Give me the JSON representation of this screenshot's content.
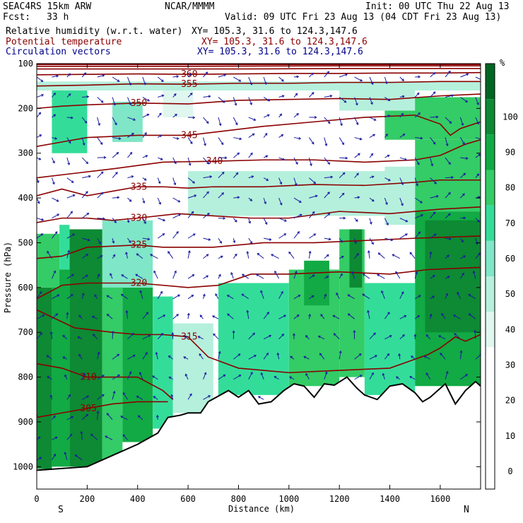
{
  "header": {
    "model": "SEAC4RS 15km ARW",
    "org": "NCAR/MMMM",
    "init": "Init: 00 UTC Thu 22 Aug 13",
    "fcst_label": "Fcst:",
    "fcst_value": "33 h",
    "valid": "Valid: 09 UTC Fri 23 Aug 13 (04 CDT Fri 23 Aug 13)",
    "fields": [
      {
        "name": "Relative humidity (w.r.t. water)",
        "xy": "XY= 105.3, 31.6 to 124.3,147.6",
        "color": "#000000"
      },
      {
        "name": "Potential temperature",
        "xy": "XY= 105.3, 31.6 to 124.3,147.6",
        "color": "#8b0000"
      },
      {
        "name": "Circulation vectors",
        "xy": "XY= 105.3, 31.6 to 124.3,147.6",
        "color": "#00008b"
      }
    ]
  },
  "colors": {
    "theta": "#8b0000",
    "vectors": "#1a1aa0",
    "terrain": "#000000",
    "rh_scale": [
      "#ffffff",
      "#ffffff",
      "#ffffff",
      "#ffffff",
      "#dff7ef",
      "#b5f0dc",
      "#7fe6c7",
      "#33dd99",
      "#33cc66",
      "#11aa44",
      "#0d8a33",
      "#006622"
    ]
  },
  "chart_data": {
    "type": "cross-section",
    "xlabel": "Distance (km)",
    "ylabel": "Pressure (hPa)",
    "xlim": [
      0,
      1760
    ],
    "ylim": [
      1050,
      100
    ],
    "x_ticks": [
      0,
      200,
      400,
      600,
      800,
      1000,
      1200,
      1400,
      1600
    ],
    "y_ticks": [
      100,
      200,
      300,
      400,
      500,
      600,
      700,
      800,
      900,
      1000
    ],
    "endpoints": {
      "left": "S",
      "right": "N"
    },
    "colorbar": {
      "unit": "%",
      "levels": [
        0,
        10,
        20,
        30,
        40,
        50,
        60,
        70,
        80,
        90,
        100
      ],
      "labels": [
        "0",
        "10",
        "20",
        "30",
        "40",
        "50",
        "60",
        "70",
        "80",
        "90",
        "100"
      ]
    },
    "terrain_surface": [
      {
        "x": 0,
        "p": 1008
      },
      {
        "x": 200,
        "p": 1000
      },
      {
        "x": 300,
        "p": 975
      },
      {
        "x": 400,
        "p": 950
      },
      {
        "x": 480,
        "p": 925
      },
      {
        "x": 520,
        "p": 890
      },
      {
        "x": 570,
        "p": 885
      },
      {
        "x": 600,
        "p": 880
      },
      {
        "x": 650,
        "p": 880
      },
      {
        "x": 680,
        "p": 855
      },
      {
        "x": 760,
        "p": 830
      },
      {
        "x": 800,
        "p": 845
      },
      {
        "x": 840,
        "p": 830
      },
      {
        "x": 880,
        "p": 860
      },
      {
        "x": 930,
        "p": 855
      },
      {
        "x": 980,
        "p": 830
      },
      {
        "x": 1020,
        "p": 815
      },
      {
        "x": 1060,
        "p": 820
      },
      {
        "x": 1100,
        "p": 845
      },
      {
        "x": 1140,
        "p": 815
      },
      {
        "x": 1180,
        "p": 818
      },
      {
        "x": 1230,
        "p": 800
      },
      {
        "x": 1270,
        "p": 825
      },
      {
        "x": 1300,
        "p": 840
      },
      {
        "x": 1350,
        "p": 850
      },
      {
        "x": 1400,
        "p": 820
      },
      {
        "x": 1450,
        "p": 815
      },
      {
        "x": 1500,
        "p": 835
      },
      {
        "x": 1530,
        "p": 855
      },
      {
        "x": 1560,
        "p": 845
      },
      {
        "x": 1620,
        "p": 815
      },
      {
        "x": 1660,
        "p": 860
      },
      {
        "x": 1700,
        "p": 830
      },
      {
        "x": 1740,
        "p": 810
      },
      {
        "x": 1760,
        "p": 820
      }
    ],
    "theta_contours": [
      {
        "level": 305,
        "label": "305",
        "points": [
          [
            0,
            890
          ],
          [
            100,
            880
          ],
          [
            200,
            870
          ],
          [
            300,
            860
          ],
          [
            400,
            855
          ],
          [
            520,
            855
          ]
        ]
      },
      {
        "level": 310,
        "label": "310",
        "points": [
          [
            0,
            770
          ],
          [
            100,
            780
          ],
          [
            200,
            800
          ],
          [
            300,
            800
          ],
          [
            400,
            800
          ],
          [
            500,
            830
          ],
          [
            540,
            850
          ]
        ]
      },
      {
        "level": 315,
        "label": "315",
        "points": [
          [
            0,
            650
          ],
          [
            150,
            690
          ],
          [
            300,
            700
          ],
          [
            400,
            705
          ],
          [
            500,
            705
          ],
          [
            600,
            710
          ],
          [
            680,
            755
          ],
          [
            800,
            780
          ],
          [
            1000,
            790
          ],
          [
            1200,
            785
          ],
          [
            1400,
            780
          ],
          [
            1550,
            750
          ],
          [
            1600,
            735
          ],
          [
            1660,
            710
          ],
          [
            1700,
            720
          ],
          [
            1760,
            705
          ]
        ]
      },
      {
        "level": 320,
        "label": "320",
        "points": [
          [
            0,
            625
          ],
          [
            100,
            595
          ],
          [
            200,
            590
          ],
          [
            300,
            590
          ],
          [
            400,
            590
          ],
          [
            600,
            600
          ],
          [
            720,
            595
          ],
          [
            850,
            570
          ],
          [
            1000,
            570
          ],
          [
            1200,
            565
          ],
          [
            1400,
            570
          ],
          [
            1550,
            560
          ],
          [
            1760,
            555
          ]
        ]
      },
      {
        "level": 325,
        "label": "325",
        "points": [
          [
            0,
            535
          ],
          [
            100,
            530
          ],
          [
            200,
            510
          ],
          [
            400,
            505
          ],
          [
            500,
            510
          ],
          [
            700,
            510
          ],
          [
            900,
            500
          ],
          [
            1100,
            500
          ],
          [
            1300,
            495
          ],
          [
            1500,
            490
          ],
          [
            1760,
            485
          ]
        ]
      },
      {
        "level": 330,
        "label": "330",
        "points": [
          [
            0,
            455
          ],
          [
            100,
            445
          ],
          [
            200,
            445
          ],
          [
            300,
            450
          ],
          [
            400,
            445
          ],
          [
            560,
            435
          ],
          [
            700,
            440
          ],
          [
            850,
            445
          ],
          [
            1000,
            445
          ],
          [
            1200,
            430
          ],
          [
            1400,
            435
          ],
          [
            1600,
            425
          ],
          [
            1760,
            420
          ]
        ]
      },
      {
        "level": 335,
        "label": "335",
        "points": [
          [
            0,
            395
          ],
          [
            100,
            380
          ],
          [
            200,
            395
          ],
          [
            300,
            385
          ],
          [
            400,
            375
          ],
          [
            500,
            375
          ],
          [
            600,
            378
          ],
          [
            700,
            375
          ],
          [
            900,
            375
          ],
          [
            1100,
            370
          ],
          [
            1300,
            372
          ],
          [
            1500,
            365
          ],
          [
            1600,
            360
          ],
          [
            1760,
            360
          ]
        ]
      },
      {
        "level": 340,
        "label": "340",
        "points": [
          [
            0,
            355
          ],
          [
            150,
            345
          ],
          [
            300,
            335
          ],
          [
            500,
            320
          ],
          [
            700,
            318
          ],
          [
            900,
            315
          ],
          [
            1100,
            315
          ],
          [
            1300,
            320
          ],
          [
            1500,
            315
          ],
          [
            1600,
            305
          ],
          [
            1700,
            280
          ],
          [
            1760,
            270
          ]
        ]
      },
      {
        "level": 345,
        "label": "345",
        "points": [
          [
            0,
            285
          ],
          [
            100,
            275
          ],
          [
            200,
            265
          ],
          [
            400,
            260
          ],
          [
            600,
            260
          ],
          [
            900,
            240
          ],
          [
            1100,
            230
          ],
          [
            1300,
            220
          ],
          [
            1500,
            215
          ],
          [
            1600,
            235
          ],
          [
            1640,
            260
          ],
          [
            1680,
            245
          ],
          [
            1760,
            230
          ]
        ]
      },
      {
        "level": 350,
        "label": "350",
        "points": [
          [
            0,
            200
          ],
          [
            100,
            195
          ],
          [
            200,
            192
          ],
          [
            400,
            188
          ],
          [
            600,
            190
          ],
          [
            800,
            182
          ],
          [
            1000,
            180
          ],
          [
            1200,
            178
          ],
          [
            1400,
            180
          ],
          [
            1600,
            172
          ],
          [
            1760,
            168
          ]
        ]
      },
      {
        "level": 355,
        "label": "355",
        "points": [
          [
            0,
            150
          ],
          [
            200,
            148
          ],
          [
            400,
            145
          ],
          [
            600,
            146
          ],
          [
            800,
            144
          ],
          [
            1000,
            144
          ],
          [
            1200,
            142
          ],
          [
            1400,
            142
          ],
          [
            1600,
            140
          ],
          [
            1760,
            140
          ]
        ]
      },
      {
        "level": 360,
        "label": "360",
        "points": [
          [
            0,
            125
          ],
          [
            200,
            124
          ],
          [
            400,
            123
          ],
          [
            600,
            124
          ],
          [
            800,
            123
          ],
          [
            1000,
            122
          ],
          [
            1200,
            122
          ],
          [
            1400,
            121
          ],
          [
            1600,
            121
          ],
          [
            1760,
            120
          ]
        ]
      },
      {
        "level": 365,
        "label": "",
        "points": [
          [
            0,
            112
          ],
          [
            400,
            112
          ],
          [
            800,
            112
          ],
          [
            1200,
            111
          ],
          [
            1760,
            111
          ]
        ]
      },
      {
        "level": 370,
        "label": "",
        "points": [
          [
            0,
            106
          ],
          [
            600,
            106
          ],
          [
            1200,
            105
          ],
          [
            1760,
            105
          ]
        ]
      },
      {
        "level": 375,
        "label": "",
        "points": [
          [
            0,
            102
          ],
          [
            880,
            102
          ],
          [
            1760,
            102
          ]
        ]
      }
    ],
    "rh_cells": [
      {
        "x0": 0,
        "x1": 60,
        "p0": 1005,
        "p1": 600,
        "rh": 92
      },
      {
        "x0": 60,
        "x1": 130,
        "p0": 1000,
        "p1": 560,
        "rh": 85
      },
      {
        "x0": 130,
        "x1": 260,
        "p0": 1000,
        "p1": 470,
        "rh": 90
      },
      {
        "x0": 260,
        "x1": 340,
        "p0": 985,
        "p1": 540,
        "rh": 72
      },
      {
        "x0": 340,
        "x1": 460,
        "p0": 945,
        "p1": 600,
        "rh": 80
      },
      {
        "x0": 460,
        "x1": 540,
        "p0": 915,
        "p1": 620,
        "rh": 60
      },
      {
        "x0": 540,
        "x1": 700,
        "p0": 880,
        "p1": 680,
        "rh": 45
      },
      {
        "x0": 0,
        "x1": 90,
        "p0": 600,
        "p1": 480,
        "rh": 70
      },
      {
        "x0": 90,
        "x1": 130,
        "p0": 560,
        "p1": 460,
        "rh": 60
      },
      {
        "x0": 260,
        "x1": 460,
        "p0": 600,
        "p1": 450,
        "rh": 50
      },
      {
        "x0": 720,
        "x1": 1000,
        "p0": 840,
        "p1": 590,
        "rh": 62
      },
      {
        "x0": 1000,
        "x1": 1200,
        "p0": 820,
        "p1": 560,
        "rh": 72
      },
      {
        "x0": 1060,
        "x1": 1160,
        "p0": 640,
        "p1": 540,
        "rh": 88
      },
      {
        "x0": 1200,
        "x1": 1300,
        "p0": 800,
        "p1": 470,
        "rh": 75
      },
      {
        "x0": 1240,
        "x1": 1290,
        "p0": 600,
        "p1": 470,
        "rh": 90
      },
      {
        "x0": 1300,
        "x1": 1500,
        "p0": 840,
        "p1": 590,
        "rh": 62
      },
      {
        "x0": 1500,
        "x1": 1760,
        "p0": 820,
        "p1": 430,
        "rh": 85
      },
      {
        "x0": 1540,
        "x1": 1760,
        "p0": 700,
        "p1": 450,
        "rh": 95
      },
      {
        "x0": 1500,
        "x1": 1760,
        "p0": 430,
        "p1": 270,
        "rh": 75
      },
      {
        "x0": 1380,
        "x1": 1500,
        "p0": 460,
        "p1": 330,
        "rh": 45
      },
      {
        "x0": 600,
        "x1": 1400,
        "p0": 440,
        "p1": 340,
        "rh": 40
      },
      {
        "x0": 1380,
        "x1": 1760,
        "p0": 270,
        "p1": 175,
        "rh": 72
      },
      {
        "x0": 1200,
        "x1": 1500,
        "p0": 205,
        "p1": 160,
        "rh": 45
      },
      {
        "x0": 60,
        "x1": 200,
        "p0": 300,
        "p1": 150,
        "rh": 62
      },
      {
        "x0": 300,
        "x1": 420,
        "p0": 275,
        "p1": 185,
        "rh": 55
      },
      {
        "x0": 500,
        "x1": 620,
        "p0": 220,
        "p1": 160,
        "rh": 38
      },
      {
        "x0": 0,
        "x1": 1760,
        "p0": 160,
        "p1": 140,
        "rh": 40
      }
    ]
  }
}
